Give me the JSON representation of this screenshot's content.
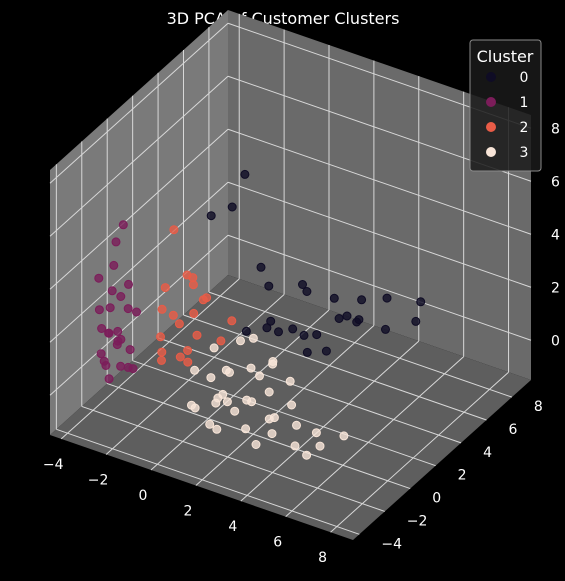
{
  "chart_data": {
    "type": "scatter3d",
    "title": "3D PCA of Customer Clusters",
    "xlabel": "",
    "ylabel": "",
    "zlabel": "",
    "x_ticks": [
      "−4",
      "−2",
      "0",
      "2",
      "4",
      "6",
      "8"
    ],
    "y_ticks": [
      "−4",
      "−2",
      "0",
      "2",
      "4",
      "6",
      "8"
    ],
    "z_ticks": [
      "0",
      "2",
      "4",
      "6",
      "8"
    ],
    "xlim": [
      -4.5,
      9
    ],
    "ylim": [
      -4.5,
      9.5
    ],
    "zlim": [
      -1.5,
      8.5
    ],
    "grid": true,
    "background": "#000000",
    "pane_color": "#7a7a7a",
    "legend": {
      "title": "Cluster",
      "position": "top-right",
      "entries": [
        {
          "label": "0",
          "color": "#0f0c25"
        },
        {
          "label": "1",
          "color": "#7c1d5a"
        },
        {
          "label": "2",
          "color": "#e95c47"
        },
        {
          "label": "3",
          "color": "#f8e5d8"
        }
      ]
    },
    "series": [
      {
        "name": "0",
        "color": "#0f0c25",
        "points": [
          [
            1,
            6,
            1
          ],
          [
            0,
            3,
            0.5
          ],
          [
            -1,
            2,
            5
          ],
          [
            0.5,
            1,
            6.2
          ],
          [
            2,
            4,
            0.5
          ],
          [
            3,
            5,
            1
          ],
          [
            2.5,
            6.5,
            0.3
          ],
          [
            4,
            7,
            1.2
          ],
          [
            3.5,
            5.5,
            0.8
          ],
          [
            1,
            3,
            2.5
          ],
          [
            2,
            2,
            1.5
          ],
          [
            3,
            4,
            0.2
          ],
          [
            4.5,
            6,
            0.6
          ],
          [
            5,
            7.5,
            0.4
          ],
          [
            2.5,
            3,
            3
          ],
          [
            0.5,
            2,
            7
          ],
          [
            1.5,
            1.5,
            4
          ],
          [
            3,
            2.5,
            0.8
          ],
          [
            4,
            5,
            2
          ],
          [
            5.5,
            7,
            1.5
          ],
          [
            2,
            5,
            0.1
          ],
          [
            1.5,
            4,
            0.6
          ],
          [
            2.5,
            5.5,
            1.4
          ],
          [
            3.2,
            6.2,
            0.5
          ],
          [
            1.2,
            2.5,
            1.2
          ],
          [
            0.8,
            3.5,
            0.9
          ]
        ]
      },
      {
        "name": "1",
        "color": "#7c1d5a",
        "points": [
          [
            -3.5,
            -2,
            0.5
          ],
          [
            -3.2,
            -1.5,
            1
          ],
          [
            -3.8,
            -1,
            2
          ],
          [
            -3,
            -2.5,
            0.2
          ],
          [
            -3.4,
            -1.8,
            1.5
          ],
          [
            -2.8,
            -1.2,
            0.8
          ],
          [
            -3.6,
            -2.2,
            2.5
          ],
          [
            -3.1,
            -0.8,
            3
          ],
          [
            -3.3,
            -1.6,
            4
          ],
          [
            -2.9,
            -2,
            1.8
          ],
          [
            -3.7,
            -1.3,
            1.2
          ],
          [
            -3.2,
            -2.4,
            0.6
          ],
          [
            -3.5,
            -0.5,
            5
          ],
          [
            -3,
            -1,
            2.2
          ],
          [
            -2.6,
            -1.7,
            0.4
          ],
          [
            -3.8,
            -1.9,
            3.5
          ],
          [
            -3.4,
            -1.1,
            0.9
          ],
          [
            -2.7,
            -2.1,
            1.6
          ],
          [
            -3.1,
            -1.4,
            2.8
          ],
          [
            -3.6,
            -0.9,
            4.5
          ],
          [
            -2.5,
            -1.5,
            0.3
          ],
          [
            -3.3,
            -2.6,
            1.1
          ],
          [
            -2.8,
            -0.7,
            2
          ],
          [
            -3.9,
            -1.5,
            1.4
          ],
          [
            -3.2,
            -1.9,
            3.2
          ],
          [
            -2.6,
            -2.3,
            0.7
          ]
        ]
      },
      {
        "name": "2",
        "color": "#e95c47",
        "points": [
          [
            -1.5,
            -1,
            1
          ],
          [
            -1,
            -0.5,
            2
          ],
          [
            -1.8,
            -0.2,
            3
          ],
          [
            -0.5,
            0,
            1.5
          ],
          [
            -1.2,
            0.5,
            0.5
          ],
          [
            -1.6,
            -0.8,
            2.5
          ],
          [
            0,
            1,
            1
          ],
          [
            -0.8,
            0.2,
            3.5
          ],
          [
            -1.4,
            -1.2,
            0.8
          ],
          [
            -1.1,
            0.8,
            1.8
          ],
          [
            -0.3,
            0.4,
            2.8
          ],
          [
            -1.9,
            -0.4,
            1.2
          ],
          [
            -0.6,
            -0.6,
            4
          ],
          [
            -1.3,
            0.1,
            0.4
          ],
          [
            -0.9,
            1.2,
            2.2
          ],
          [
            -1.7,
            0.3,
            5
          ],
          [
            0.2,
            1.5,
            1.6
          ],
          [
            -0.4,
            -0.9,
            0.9
          ],
          [
            -1,
            0.6,
            3
          ],
          [
            -1.5,
            -0.1,
            2
          ]
        ]
      },
      {
        "name": "3",
        "color": "#f8e5d8",
        "points": [
          [
            1,
            -1,
            0
          ],
          [
            1.5,
            -1.5,
            0.5
          ],
          [
            2,
            -0.5,
            0
          ],
          [
            1.2,
            -2,
            -0.5
          ],
          [
            2.5,
            -1,
            0.3
          ],
          [
            0.8,
            -1.2,
            0.8
          ],
          [
            1.8,
            -2.5,
            -0.3
          ],
          [
            2.2,
            -1.8,
            0.2
          ],
          [
            1.4,
            -0.8,
            1
          ],
          [
            3,
            -0.5,
            0.6
          ],
          [
            0.5,
            -2.2,
            0.1
          ],
          [
            2.8,
            -2,
            -0.2
          ],
          [
            1.6,
            -1.4,
            1.4
          ],
          [
            2.4,
            -0.2,
            0.9
          ],
          [
            1,
            -2.8,
            0.4
          ],
          [
            3.4,
            -1.2,
            0
          ],
          [
            0.6,
            -0.6,
            1.6
          ],
          [
            2.1,
            -2.2,
            0.7
          ],
          [
            1.3,
            -1.7,
            0.2
          ],
          [
            3.8,
            -1.5,
            0.3
          ],
          [
            4.5,
            -1,
            0
          ],
          [
            5,
            -2,
            -0.2
          ],
          [
            4,
            -0.5,
            0.4
          ],
          [
            5.5,
            -1.2,
            0.1
          ],
          [
            2.6,
            0.5,
            1.2
          ],
          [
            3.2,
            0.8,
            0.5
          ],
          [
            1.9,
            0.2,
            2
          ],
          [
            0.3,
            -1.6,
            1.1
          ],
          [
            2.7,
            -1.4,
            1.8
          ],
          [
            4.2,
            -2.4,
            0.2
          ],
          [
            6,
            -1.8,
            0
          ],
          [
            6.5,
            -0.8,
            0.1
          ],
          [
            5.8,
            -2.5,
            -0.1
          ],
          [
            3.6,
            -2.6,
            -0.3
          ],
          [
            1.1,
            0.6,
            1.5
          ],
          [
            2.3,
            1,
            0.8
          ]
        ]
      }
    ]
  }
}
